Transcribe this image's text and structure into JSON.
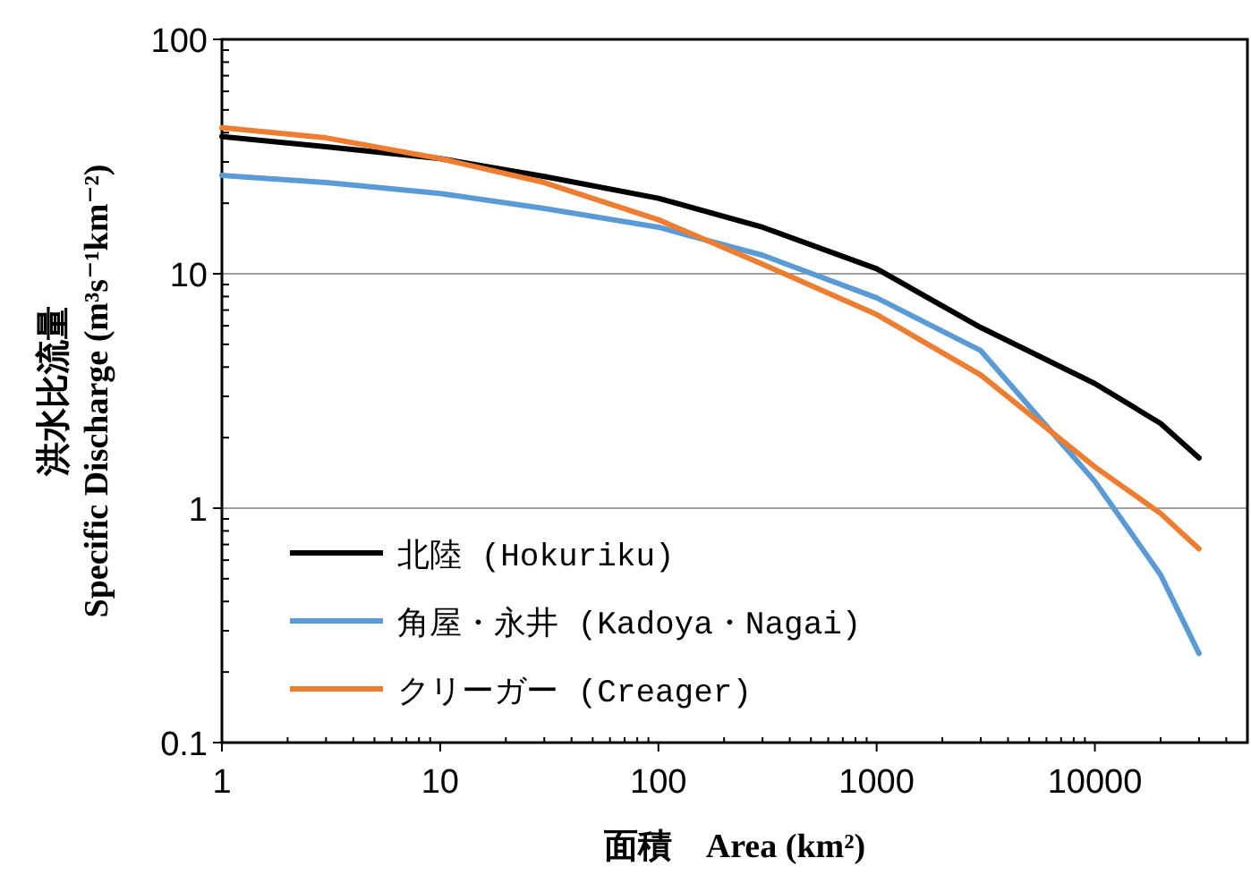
{
  "chart_data": {
    "type": "line",
    "xlabel": "面積　Area (km²)",
    "ylabel": "洪水比流量\nSpecific Discharge (m³s⁻¹km⁻²)",
    "x": [
      1,
      3,
      10,
      30,
      100,
      300,
      1000,
      3000,
      10000,
      20000,
      30000
    ],
    "series": [
      {
        "name": "北陸 (Hokuriku)",
        "color": "#000000",
        "values": [
          38.5,
          34.8,
          31,
          26,
          21,
          15.8,
          10.5,
          5.9,
          3.4,
          2.3,
          1.64
        ]
      },
      {
        "name": "角屋・永井 (Kadoya・Nagai)",
        "color": "#5b9bd5",
        "values": [
          26.3,
          24.5,
          22,
          19,
          15.8,
          12,
          7.9,
          4.7,
          1.3,
          0.52,
          0.24
        ]
      },
      {
        "name": "クリーガー (Creager)",
        "color": "#ed7d31",
        "values": [
          42,
          38,
          31,
          24.5,
          17,
          11,
          6.7,
          3.7,
          1.5,
          0.95,
          0.67
        ]
      }
    ],
    "log": "xy",
    "xlim": [
      1,
      50000
    ],
    "ylim": [
      0.1,
      100
    ],
    "xticks": [
      1,
      10,
      100,
      1000,
      10000
    ],
    "yticks": [
      0.1,
      1,
      10,
      100
    ],
    "grid": "y",
    "legend": "bottom left",
    "line_style": "solid",
    "marker": "none"
  }
}
